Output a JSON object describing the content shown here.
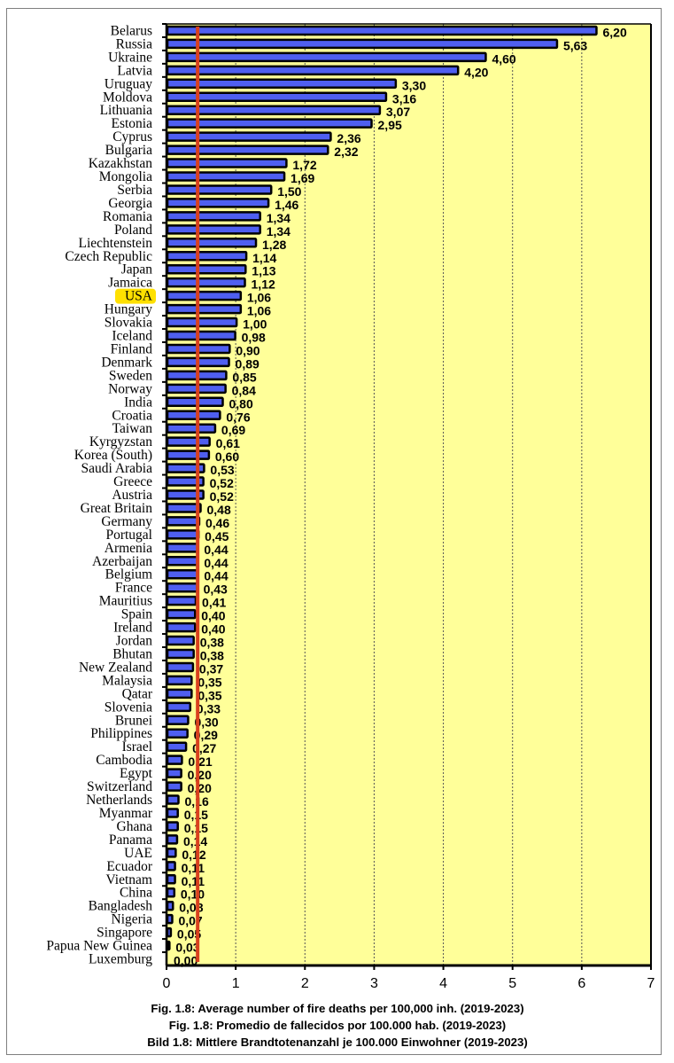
{
  "chart_data": {
    "type": "bar",
    "orientation": "horizontal",
    "title": "",
    "captions": [
      "Fig. 1.8: Average number of fire deaths per 100,000 inh.  (2019-2023)",
      "Fig. 1.8: Promedio de fallecidos por 100.000 hab. (2019-2023)",
      "Bild 1.8: Mittlere Brandtotenanzahl je 100.000 Einwohner (2019-2023)"
    ],
    "xlabel": "",
    "ylabel": "",
    "xlim": [
      0,
      7
    ],
    "xticks": [
      "0",
      "1",
      "2",
      "3",
      "4",
      "5",
      "6",
      "7"
    ],
    "grid": "vertical dotted",
    "highlighted_category": "USA",
    "reference_line": {
      "value": 0.45,
      "color": "#d9411e"
    },
    "colors": {
      "bar": "#4f5ff0",
      "bar_outline": "#000000",
      "plot_bg": "#ffff99",
      "highlight": "#ffe000"
    },
    "categories": [
      "Belarus",
      "Russia",
      "Ukraine",
      "Latvia",
      "Uruguay",
      "Moldova",
      "Lithuania",
      "Estonia",
      "Cyprus",
      "Bulgaria",
      "Kazakhstan",
      "Mongolia",
      "Serbia",
      "Georgia",
      "Romania",
      "Poland",
      "Liechtenstein",
      "Czech Republic",
      "Japan",
      "Jamaica",
      "USA",
      "Hungary",
      "Slovakia",
      "Iceland",
      "Finland",
      "Denmark",
      "Sweden",
      "Norway",
      "India",
      "Croatia",
      "Taiwan",
      "Kyrgyzstan",
      "Korea (South)",
      "Saudi Arabia",
      "Greece",
      "Austria",
      "Great Britain",
      "Germany",
      "Portugal",
      "Armenia",
      "Azerbaijan",
      "Belgium",
      "France",
      "Mauritius",
      "Spain",
      "Ireland",
      "Jordan",
      "Bhutan",
      "New Zealand",
      "Malaysia",
      "Qatar",
      "Slovenia",
      "Brunei",
      "Philippines",
      "Israel",
      "Cambodia",
      "Egypt",
      "Switzerland",
      "Netherlands",
      "Myanmar",
      "Ghana",
      "Panama",
      "UAE",
      "Ecuador",
      "Vietnam",
      "China",
      "Bangladesh",
      "Nigeria",
      "Singapore",
      "Papua New Guinea",
      "Luxemburg"
    ],
    "values": [
      6.2,
      5.63,
      4.6,
      4.2,
      3.3,
      3.16,
      3.07,
      2.95,
      2.36,
      2.32,
      1.72,
      1.69,
      1.5,
      1.46,
      1.34,
      1.34,
      1.28,
      1.14,
      1.13,
      1.12,
      1.06,
      1.06,
      1.0,
      0.98,
      0.9,
      0.89,
      0.85,
      0.84,
      0.8,
      0.76,
      0.69,
      0.61,
      0.6,
      0.53,
      0.52,
      0.52,
      0.48,
      0.46,
      0.45,
      0.44,
      0.44,
      0.44,
      0.43,
      0.41,
      0.4,
      0.4,
      0.38,
      0.38,
      0.37,
      0.35,
      0.35,
      0.33,
      0.3,
      0.29,
      0.27,
      0.21,
      0.2,
      0.2,
      0.16,
      0.15,
      0.15,
      0.14,
      0.12,
      0.11,
      0.11,
      0.1,
      0.08,
      0.07,
      0.05,
      0.03,
      0.0
    ],
    "value_labels": [
      "6,20",
      "5,63",
      "4,60",
      "4,20",
      "3,30",
      "3,16",
      "3,07",
      "2,95",
      "2,36",
      "2,32",
      "1,72",
      "1,69",
      "1,50",
      "1,46",
      "1,34",
      "1,34",
      "1,28",
      "1,14",
      "1,13",
      "1,12",
      "1,06",
      "1,06",
      "1,00",
      "0,98",
      "0,90",
      "0,89",
      "0,85",
      "0,84",
      "0,80",
      "0,76",
      "0,69",
      "0,61",
      "0,60",
      "0,53",
      "0,52",
      "0,52",
      "0,48",
      "0,46",
      "0,45",
      "0,44",
      "0,44",
      "0,44",
      "0,43",
      "0,41",
      "0,40",
      "0,40",
      "0,38",
      "0,38",
      "0,37",
      "0,35",
      "0,35",
      "0,33",
      "0,30",
      "0,29",
      "0,27",
      "0,21",
      "0,20",
      "0,20",
      "0,16",
      "0,15",
      "0,15",
      "0,14",
      "0,12",
      "0,11",
      "0,11",
      "0,10",
      "0,08",
      "0,07",
      "0,05",
      "0,03",
      "0,00"
    ]
  }
}
